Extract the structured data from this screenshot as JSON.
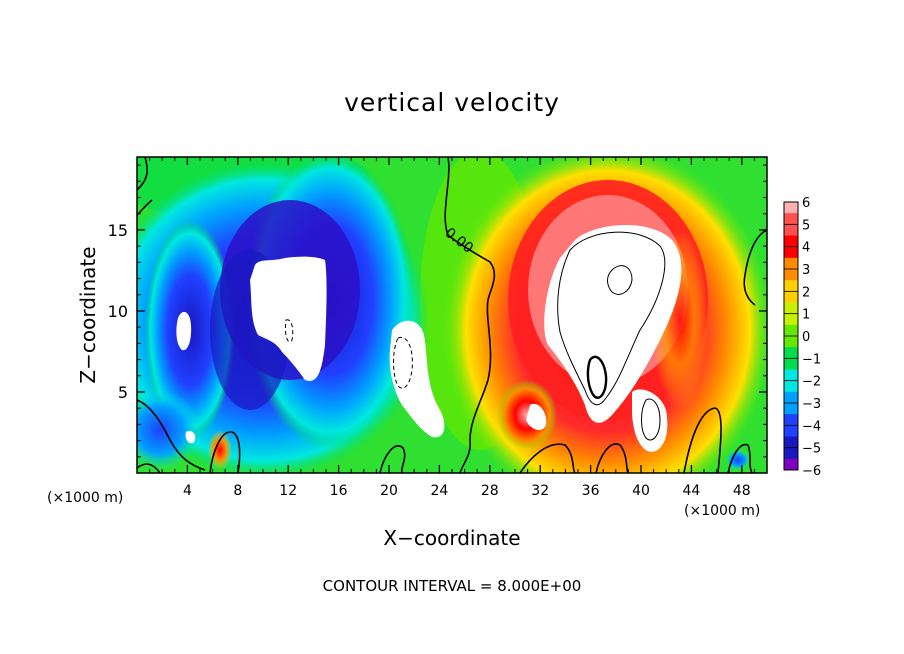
{
  "chart_data": {
    "type": "heatmap",
    "title": "vertical velocity",
    "xlabel": "X−coordinate",
    "ylabel": "Z−coordinate",
    "x_unit_left": "(×1000 m)",
    "x_unit_right": "(×1000 m)",
    "contour_note": "CONTOUR INTERVAL = 8.000E+00",
    "contour_label": "0.00",
    "xlim": [
      0,
      50
    ],
    "ylim": [
      0,
      19.5
    ],
    "xticks": [
      "4",
      "8",
      "12",
      "16",
      "20",
      "24",
      "28",
      "32",
      "36",
      "40",
      "44",
      "48"
    ],
    "yticks": [
      "5",
      "10",
      "15"
    ],
    "colorbar": {
      "min": -6,
      "max": 6,
      "labels": [
        "6",
        "5",
        "4",
        "3",
        "2",
        "1",
        "0",
        "−1",
        "−2",
        "−3",
        "−4",
        "−5",
        "−6"
      ],
      "colors": [
        "#ffb0b0",
        "#ff5050",
        "#ff0000",
        "#ff8c00",
        "#ffd000",
        "#c8f000",
        "#66e800",
        "#00dc4c",
        "#00e8e0",
        "#00a0ff",
        "#2040ff",
        "#1818c0",
        "#8000c0"
      ]
    },
    "features": [
      {
        "name": "updraft core",
        "x": 38,
        "z": 10.5,
        "w": 8
      },
      {
        "name": "downdraft region",
        "x": 13,
        "z": 11,
        "w": -8
      },
      {
        "name": "downdraft core",
        "x": 22,
        "z": 6.5,
        "w": -8
      }
    ]
  }
}
